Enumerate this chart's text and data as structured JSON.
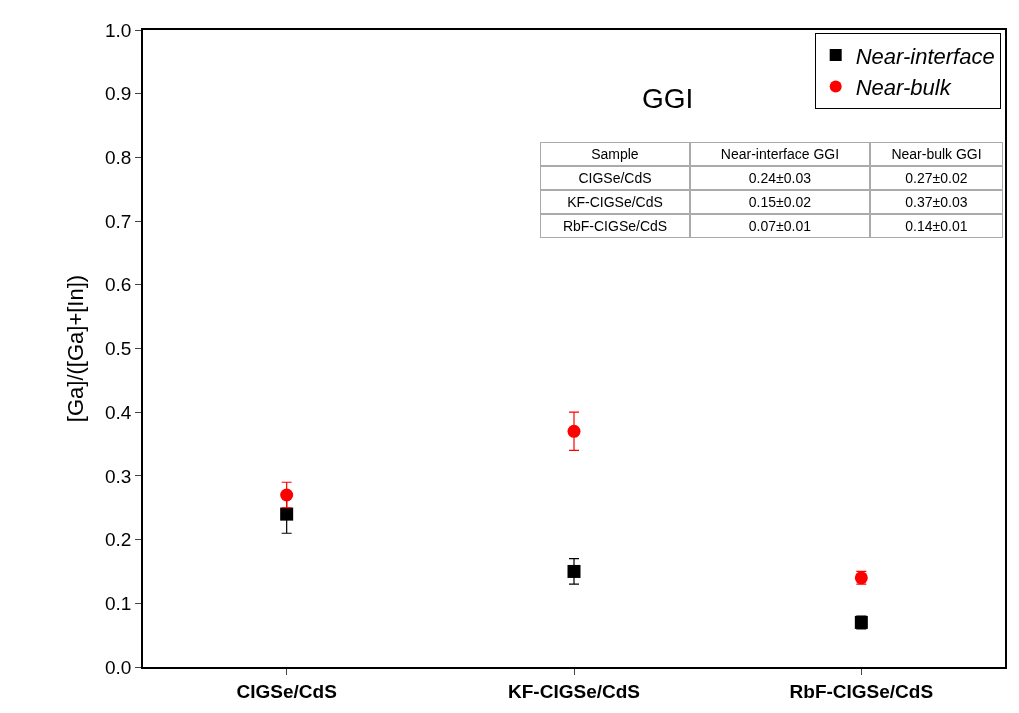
{
  "chart_data": {
    "type": "scatter",
    "ylabel": "[Ga]/([Ga]+[In])",
    "categories": [
      "CIGSe/CdS",
      "KF-CIGSe/CdS",
      "RbF-CIGSe/CdS"
    ],
    "series": [
      {
        "name": "Near-interface",
        "color": "#000000",
        "marker": "square",
        "values": [
          0.24,
          0.15,
          0.07
        ],
        "errors": [
          0.03,
          0.02,
          0.01
        ]
      },
      {
        "name": "Near-bulk",
        "color": "#ff0000",
        "marker": "circle",
        "values": [
          0.27,
          0.37,
          0.14
        ],
        "errors": [
          0.02,
          0.03,
          0.01
        ]
      }
    ],
    "annotations": [
      "GGI",
      "Sample",
      "Near-interface GGI",
      "Near-bulk GGI",
      "CIGSe/CdS",
      "0.24±0.03",
      "0.27±0.02",
      "KF-CIGSe/CdS",
      "0.15±0.02",
      "0.37±0.03",
      "RbF-CIGSe/CdS",
      "0.07±0.01",
      "0.14±0.01"
    ],
    "ylim": [
      0,
      1
    ],
    "yticks": [
      {
        "value": 0,
        "label": "0.0"
      },
      0.1,
      0.2,
      0.3,
      0.4,
      0.5,
      0.6,
      0.7,
      0.8,
      0.9,
      {
        "value": 1,
        "label": "1.0"
      }
    ],
    "legend": "top right"
  }
}
